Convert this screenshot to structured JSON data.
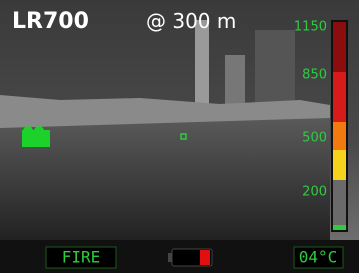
{
  "header": {
    "model": "LR700",
    "range": "@ 300 m"
  },
  "scale": {
    "labels": [
      "1150",
      "850",
      "500",
      "200"
    ]
  },
  "status": {
    "mode": "FIRE",
    "temperature": "04°C"
  }
}
